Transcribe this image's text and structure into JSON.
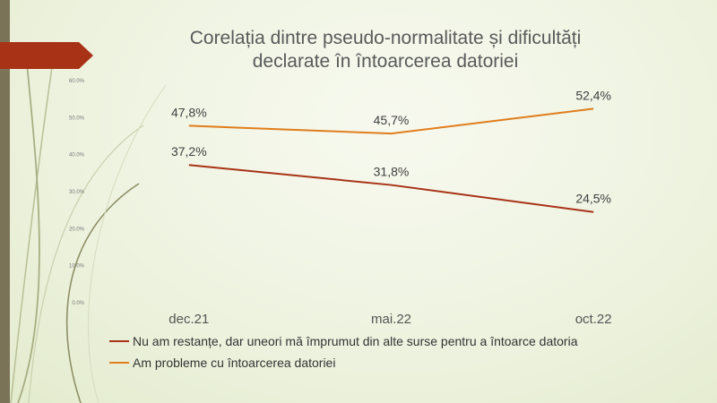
{
  "chart_data": {
    "type": "line",
    "title": "Corelația dintre pseudo-normalitate și dificultăți declarate în întoarcerea datoriei",
    "title_lines": [
      "Corelația dintre pseudo-normalitate și dificultăți",
      "declarate în întoarcerea datoriei"
    ],
    "categories": [
      "dec.21",
      "mai.22",
      "oct.22"
    ],
    "ylim": [
      0,
      60
    ],
    "y_ticks": [
      0,
      10,
      20,
      30,
      40,
      50,
      60
    ],
    "y_tick_labels": [
      "0.0%",
      "10.0%",
      "20.0%",
      "30.0%",
      "40.0%",
      "50.0%",
      "60.0%"
    ],
    "series": [
      {
        "name": "Nu am restanțe, dar uneori mă împrumut din alte surse pentru a întoarce datoria",
        "values": [
          37.2,
          31.8,
          24.5
        ],
        "labels": [
          "37,2%",
          "31,8%",
          "24,5%"
        ],
        "color": "#a83216"
      },
      {
        "name": "Am probleme cu întoarcerea datoriei",
        "values": [
          47.8,
          45.7,
          52.4
        ],
        "labels": [
          "47,8%",
          "45,7%",
          "52,4%"
        ],
        "color": "#e07d1c"
      }
    ],
    "grid": false,
    "legend_position": "bottom-left"
  },
  "theme": {
    "arrow_color": "#a83216",
    "bar_color": "#7a7358"
  }
}
